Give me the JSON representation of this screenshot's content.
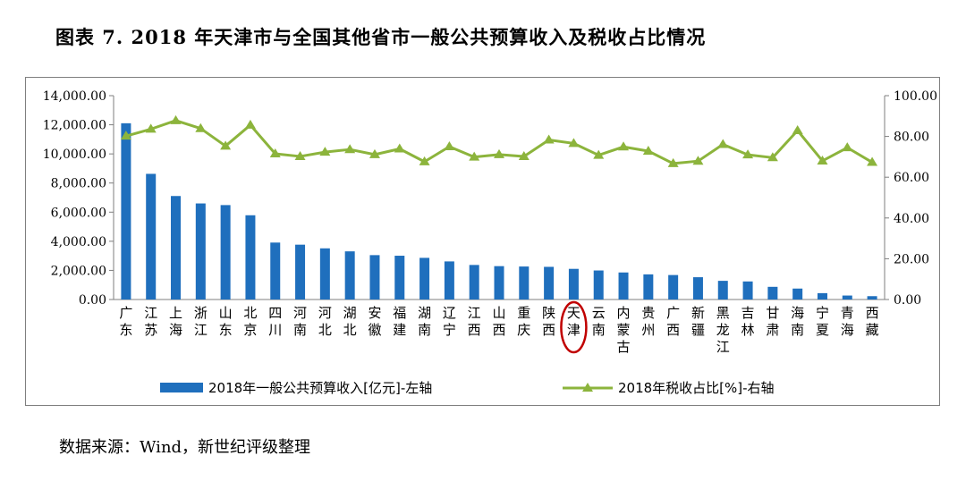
{
  "title": "图表 7. 2018 年天津市与全国其他省市一般公共预算收入及税收占比情况",
  "source": "数据来源：Wind，新世纪评级整理",
  "chart_data": {
    "type": "bar",
    "categories": [
      "广东",
      "江苏",
      "上海",
      "浙江",
      "山东",
      "北京",
      "四川",
      "河南",
      "河北",
      "湖北",
      "安徽",
      "福建",
      "湖南",
      "辽宁",
      "江西",
      "山西",
      "重庆",
      "陕西",
      "天津",
      "云南",
      "内蒙古",
      "贵州",
      "广西",
      "新疆",
      "黑龙江",
      "吉林",
      "甘肃",
      "海南",
      "宁夏",
      "青海",
      "西藏"
    ],
    "series": [
      {
        "name": "2018年一般公共预算收入[亿元]-左轴",
        "type": "bar",
        "axis": "left",
        "color": "#1f6fbd",
        "values": [
          12105,
          8630,
          7108,
          6598,
          6485,
          5786,
          3911,
          3766,
          3514,
          3307,
          3048,
          3007,
          2861,
          2616,
          2373,
          2292,
          2266,
          2243,
          2106,
          1994,
          1857,
          1727,
          1681,
          1531,
          1283,
          1241,
          871,
          752,
          437,
          273,
          230
        ]
      },
      {
        "name": "2018年税收占比[%]-右轴",
        "type": "line",
        "axis": "right",
        "color": "#8cb43c",
        "values": [
          80.2,
          83.6,
          87.8,
          83.9,
          75.3,
          85.6,
          71.5,
          70.2,
          72.3,
          73.6,
          71.1,
          73.9,
          67.6,
          75.0,
          69.9,
          71.1,
          70.2,
          78.3,
          76.6,
          70.8,
          74.9,
          72.8,
          66.7,
          67.9,
          76.1,
          71.0,
          69.6,
          82.9,
          68.0,
          74.5,
          67.3
        ]
      }
    ],
    "y_left": {
      "min": 0,
      "max": 14000,
      "step": 2000,
      "tick_labels": [
        "0.00",
        "2,000.00",
        "4,000.00",
        "6,000.00",
        "8,000.00",
        "10,000.00",
        "12,000.00",
        "14,000.00"
      ]
    },
    "y_right": {
      "min": 0,
      "max": 100,
      "step": 20,
      "tick_labels": [
        "0.00",
        "20.00",
        "40.00",
        "60.00",
        "80.00",
        "100.00"
      ]
    },
    "highlight": {
      "category": "天津",
      "shape": "ellipse",
      "color": "#c00000"
    },
    "grid": false,
    "legend_position": "bottom"
  }
}
